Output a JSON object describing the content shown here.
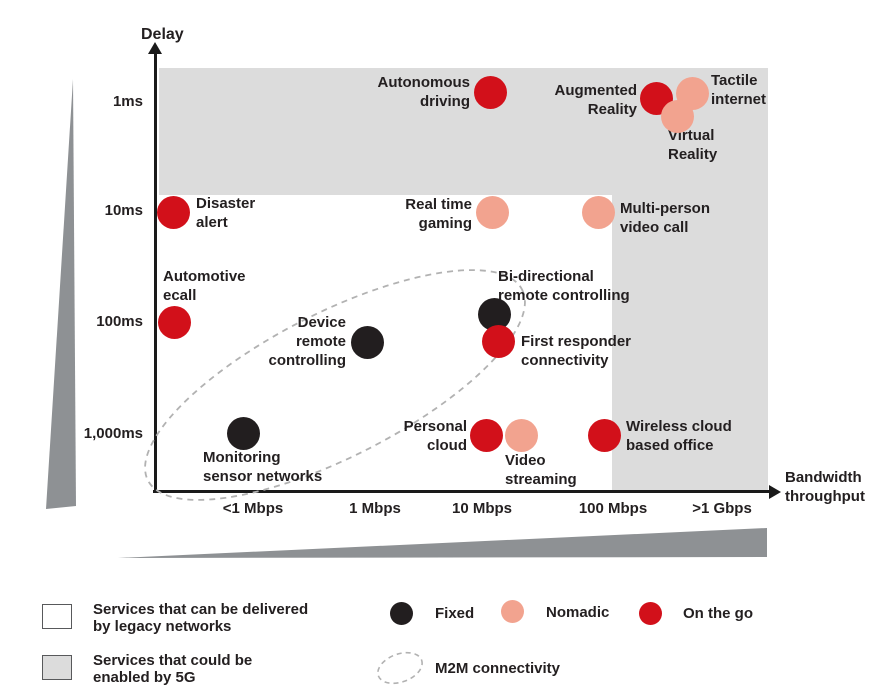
{
  "colors": {
    "fixed": "#221e1f",
    "nomadic": "#f2a38f",
    "on_the_go": "#d2101a",
    "region_5g": "#dcdcdc",
    "wedge": "#8e9194",
    "text": "#231f20",
    "dash": "#b2b2b2",
    "axis": "#1a1a1a"
  },
  "axes": {
    "y_title": "Delay",
    "x_title_lines": [
      "Bandwidth",
      "throughput"
    ],
    "y_ticks": [
      {
        "label": "1ms",
        "py": 102
      },
      {
        "label": "10ms",
        "py": 211
      },
      {
        "label": "100ms",
        "py": 322
      },
      {
        "label": "1,000ms",
        "py": 434
      }
    ],
    "x_ticks": [
      {
        "label": "<1 Mbps",
        "px": 253
      },
      {
        "label": "1 Mbps",
        "px": 375
      },
      {
        "label": "10 Mbps",
        "px": 482
      },
      {
        "label": "100 Mbps",
        "px": 613
      },
      {
        "label": ">1 Gbps",
        "px": 722
      }
    ]
  },
  "chart_data": {
    "type": "scatter",
    "x_axis": {
      "label": "Bandwidth throughput",
      "scale": "logarithmic-categorical",
      "ticks": [
        "<1 Mbps",
        "1 Mbps",
        "10 Mbps",
        "100 Mbps",
        ">1 Gbps"
      ]
    },
    "y_axis": {
      "label": "Delay",
      "scale": "logarithmic-categorical",
      "ticks": [
        "1ms",
        "10ms",
        "100ms",
        "1,000ms"
      ]
    },
    "series_legend": [
      {
        "name": "Fixed",
        "key": "fixed"
      },
      {
        "name": "Nomadic",
        "key": "nomadic"
      },
      {
        "name": "On the go",
        "key": "on_the_go"
      }
    ],
    "regions": [
      {
        "name": "Services that could be enabled by 5G",
        "areas": [
          "delay faster than ~10ms across all bandwidths",
          "bandwidth above ~100 Mbps at all delays"
        ]
      },
      {
        "name": "Services that can be delivered by legacy networks",
        "areas": [
          "delay slower than ~10ms and bandwidth below ~100 Mbps"
        ]
      }
    ],
    "group_annotation": {
      "label": "M2M connectivity",
      "members": [
        "Monitoring sensor networks",
        "Device remote controlling",
        "Bi-directional remote controlling",
        "First responder connectivity"
      ]
    },
    "points": [
      {
        "name": "autonomous-driving",
        "series": "On the go",
        "bandwidth": "10 Mbps",
        "delay": "1ms",
        "pos": [
          490,
          92
        ],
        "label_lines": [
          "Autonomous",
          "driving"
        ],
        "label_align": "right",
        "label_pos": [
          470,
          73
        ]
      },
      {
        "name": "augmented-reality",
        "series": "On the go",
        "bandwidth": ">100 Mbps",
        "delay": "1ms",
        "pos": [
          656,
          98
        ],
        "label_lines": [
          "Augmented",
          "Reality"
        ],
        "label_align": "right",
        "label_pos": [
          637,
          81
        ]
      },
      {
        "name": "tactile-internet",
        "series": "Nomadic",
        "bandwidth": ">1 Gbps",
        "delay": "1ms",
        "pos": [
          692,
          93
        ],
        "label_lines": [
          "Tactile",
          "internet"
        ],
        "label_align": "left",
        "label_pos": [
          711,
          71
        ]
      },
      {
        "name": "virtual-reality",
        "series": "Nomadic",
        "bandwidth": ">100 Mbps",
        "delay": "1ms",
        "pos": [
          677,
          116
        ],
        "label_lines": [
          "Virtual",
          "Reality"
        ],
        "label_align": "left",
        "label_pos": [
          668,
          126
        ]
      },
      {
        "name": "disaster-alert",
        "series": "On the go",
        "bandwidth": "<1 Mbps",
        "delay": "10ms",
        "pos": [
          173,
          212
        ],
        "label_lines": [
          "Disaster",
          "alert"
        ],
        "label_align": "left",
        "label_pos": [
          196,
          194
        ]
      },
      {
        "name": "real-time-gaming",
        "series": "Nomadic",
        "bandwidth": "10 Mbps",
        "delay": "10ms",
        "pos": [
          492,
          212
        ],
        "label_lines": [
          "Real time",
          "gaming"
        ],
        "label_align": "right",
        "label_pos": [
          472,
          195
        ]
      },
      {
        "name": "multi-person-video-call",
        "series": "Nomadic",
        "bandwidth": "100 Mbps",
        "delay": "10ms",
        "pos": [
          598,
          212
        ],
        "label_lines": [
          "Multi-person",
          "video call"
        ],
        "label_align": "left",
        "label_pos": [
          620,
          199
        ]
      },
      {
        "name": "automotive-ecall",
        "series": "On the go",
        "bandwidth": "<1 Mbps",
        "delay": "100ms",
        "pos": [
          174,
          322
        ],
        "label_lines": [
          "Automotive",
          "ecall"
        ],
        "label_align": "left",
        "label_pos": [
          163,
          267
        ]
      },
      {
        "name": "device-remote-controlling",
        "series": "Fixed",
        "bandwidth": "1 Mbps",
        "delay": "100ms",
        "pos": [
          367,
          342
        ],
        "label_lines": [
          "Device",
          "remote",
          "controlling"
        ],
        "label_align": "right",
        "label_pos": [
          346,
          313
        ]
      },
      {
        "name": "bi-directional-remote-controlling",
        "series": "Fixed",
        "bandwidth": "10 Mbps",
        "delay": "100ms",
        "pos": [
          494,
          314
        ],
        "label_lines": [
          "Bi-directional",
          "remote controlling"
        ],
        "label_align": "left",
        "label_pos": [
          498,
          267
        ]
      },
      {
        "name": "first-responder-connectivity",
        "series": "On the go",
        "bandwidth": "10 Mbps",
        "delay": "100ms",
        "pos": [
          498,
          341
        ],
        "label_lines": [
          "First responder",
          "connectivity"
        ],
        "label_align": "left",
        "label_pos": [
          521,
          332
        ]
      },
      {
        "name": "monitoring-sensor-networks",
        "series": "Fixed",
        "bandwidth": "<1 Mbps",
        "delay": "1,000ms",
        "pos": [
          243,
          433
        ],
        "label_lines": [
          "Monitoring",
          "sensor networks"
        ],
        "label_align": "left",
        "label_pos": [
          203,
          448
        ]
      },
      {
        "name": "personal-cloud",
        "series": "On the go",
        "bandwidth": "10 Mbps",
        "delay": "1,000ms",
        "pos": [
          486,
          435
        ],
        "label_lines": [
          "Personal",
          "cloud"
        ],
        "label_align": "right",
        "label_pos": [
          467,
          417
        ]
      },
      {
        "name": "video-streaming",
        "series": "Nomadic",
        "bandwidth": "10 Mbps",
        "delay": "1,000ms",
        "pos": [
          521,
          435
        ],
        "label_lines": [
          "Video",
          "streaming"
        ],
        "label_align": "left",
        "label_pos": [
          505,
          451
        ]
      },
      {
        "name": "wireless-cloud-based-office",
        "series": "On the go",
        "bandwidth": "100 Mbps",
        "delay": "1,000ms",
        "pos": [
          604,
          435
        ],
        "label_lines": [
          "Wireless cloud",
          "based office"
        ],
        "label_align": "left",
        "label_pos": [
          626,
          417
        ]
      }
    ]
  },
  "legend": {
    "legacy": {
      "lines": [
        "Services that can be delivered",
        "by legacy networks"
      ]
    },
    "five_g": {
      "lines": [
        "Services that could be",
        "enabled by 5G"
      ]
    },
    "fixed_label": "Fixed",
    "nomadic_label": "Nomadic",
    "on_the_go_label": "On the go",
    "m2m_label": "M2M connectivity"
  }
}
